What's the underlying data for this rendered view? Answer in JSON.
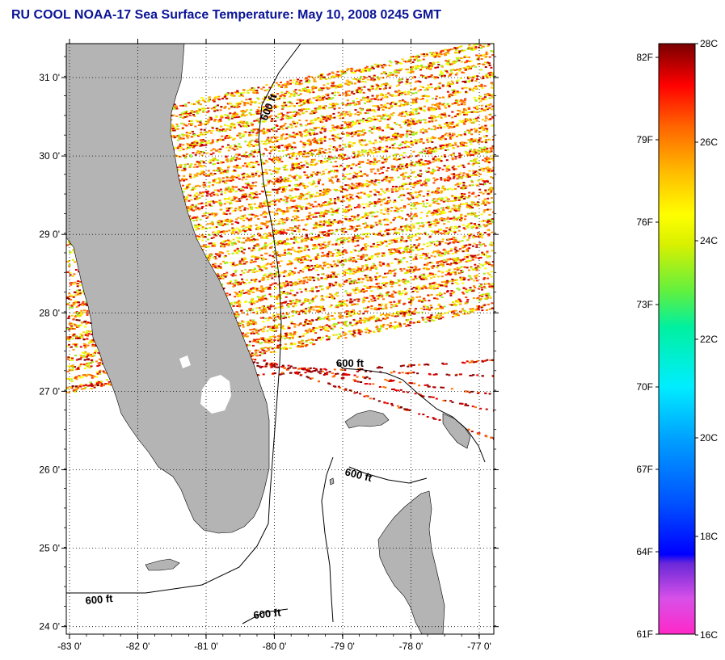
{
  "title": "RU COOL  NOAA-17  Sea Surface Temperature:  May 10, 2008 0245 GMT",
  "map": {
    "lat_labels": [
      "31 0'",
      "30 0'",
      "29 0'",
      "28 0'",
      "27 0'",
      "26 0'",
      "25 0'",
      "24 0'"
    ],
    "lon_labels": [
      "-83 0'",
      "-82 0'",
      "-81 0'",
      "-80 0'",
      "-79 0'",
      "-78 0'",
      "-77 0'"
    ],
    "contour_labels": [
      "600 ft",
      "600 ft",
      "600 ft",
      "600 ft",
      "600 ft"
    ],
    "land_color": "#b4b4b4",
    "cloud_color": "#ffffff"
  },
  "colorbar": {
    "fahrenheit_labels": [
      "82F",
      "79F",
      "76F",
      "73F",
      "70F",
      "67F",
      "64F",
      "61F"
    ],
    "celsius_labels": [
      "28C",
      "26C",
      "24C",
      "22C",
      "20C",
      "18C",
      "16C"
    ],
    "range_c": [
      16,
      28
    ],
    "range_f": [
      61,
      82
    ]
  }
}
